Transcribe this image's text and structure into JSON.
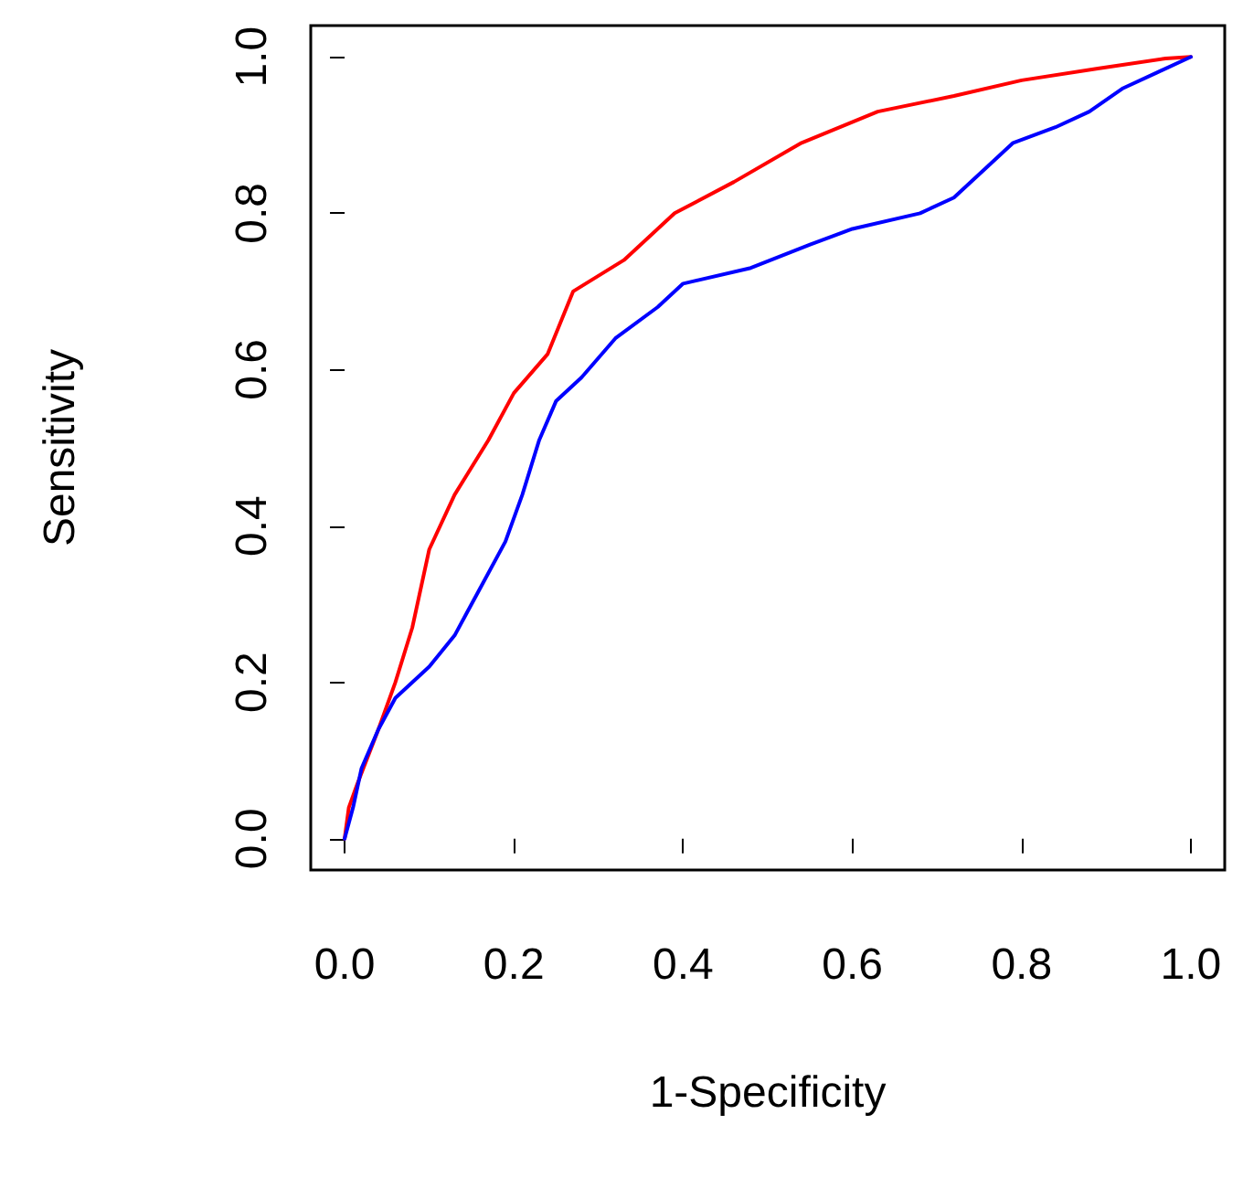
{
  "chart_data": {
    "type": "line",
    "xlabel": "1-Specificity",
    "ylabel": "Sensitivity",
    "xlim": [
      -0.04,
      1.04
    ],
    "ylim": [
      -0.04,
      1.04
    ],
    "xticks": [
      {
        "value": 0,
        "label": "0.0"
      },
      {
        "value": 0.2,
        "label": "0.2"
      },
      {
        "value": 0.4,
        "label": "0.4"
      },
      {
        "value": 0.6,
        "label": "0.6"
      },
      {
        "value": 0.8,
        "label": "0.8"
      },
      {
        "value": 1,
        "label": "1.0"
      }
    ],
    "yticks": [
      {
        "value": 0,
        "label": "0.0"
      },
      {
        "value": 0.2,
        "label": "0.2"
      },
      {
        "value": 0.4,
        "label": "0.4"
      },
      {
        "value": 0.6,
        "label": "0.6"
      },
      {
        "value": 0.8,
        "label": "0.8"
      },
      {
        "value": 1,
        "label": "1.0"
      }
    ],
    "grid": false,
    "marker": "none",
    "line_style": "solid",
    "series": [
      {
        "color": "#ff0000",
        "x": [
          0,
          0.005,
          0.015,
          0.04,
          0.06,
          0.08,
          0.1,
          0.13,
          0.17,
          0.2,
          0.24,
          0.27,
          0.33,
          0.39,
          0.46,
          0.54,
          0.63,
          0.72,
          0.8,
          0.89,
          0.97,
          1
        ],
        "values": [
          0,
          0.04,
          0.07,
          0.14,
          0.2,
          0.27,
          0.37,
          0.44,
          0.51,
          0.57,
          0.62,
          0.7,
          0.74,
          0.8,
          0.84,
          0.89,
          0.93,
          0.95,
          0.97,
          0.985,
          0.998,
          1
        ]
      },
      {
        "color": "#0000ff",
        "x": [
          0,
          0.01,
          0.02,
          0.04,
          0.06,
          0.1,
          0.13,
          0.16,
          0.19,
          0.21,
          0.23,
          0.25,
          0.28,
          0.32,
          0.37,
          0.4,
          0.48,
          0.55,
          0.6,
          0.68,
          0.72,
          0.76,
          0.79,
          0.84,
          0.88,
          0.92,
          0.96,
          1
        ],
        "values": [
          0,
          0.04,
          0.09,
          0.14,
          0.18,
          0.22,
          0.26,
          0.32,
          0.38,
          0.44,
          0.51,
          0.56,
          0.59,
          0.64,
          0.68,
          0.71,
          0.73,
          0.76,
          0.78,
          0.8,
          0.82,
          0.86,
          0.89,
          0.91,
          0.93,
          0.96,
          0.98,
          1
        ]
      }
    ]
  }
}
